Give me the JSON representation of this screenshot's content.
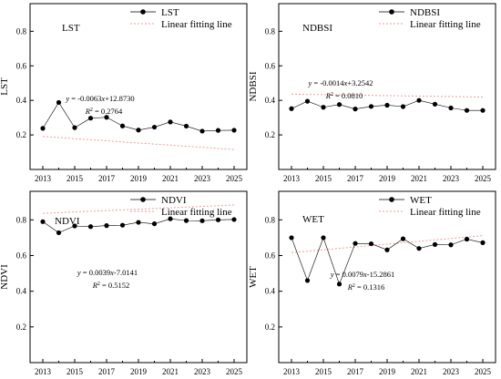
{
  "colors": {
    "series": "#000000",
    "fit": "#f29a9a",
    "axis": "#000000",
    "background": "#ffffff"
  },
  "chart_data": [
    {
      "type": "line",
      "panel": "top-left",
      "tag": "LST",
      "ylabel": "LST",
      "x": [
        2013,
        2014,
        2015,
        2016,
        2017,
        2018,
        2019,
        2020,
        2021,
        2022,
        2023,
        2024,
        2025
      ],
      "xticks": [
        "2013",
        "2015",
        "2017",
        "2019",
        "2021",
        "2023",
        "2025"
      ],
      "xlim": [
        2012.2,
        2025.8
      ],
      "ylim": [
        0,
        0.96
      ],
      "yticks": [
        "0.2",
        "0.4",
        "0.6",
        "0.8"
      ],
      "series": [
        {
          "name": "LST",
          "values": [
            0.238,
            0.388,
            0.242,
            0.297,
            0.302,
            0.252,
            0.228,
            0.245,
            0.275,
            0.251,
            0.222,
            0.226,
            0.227
          ]
        }
      ],
      "fit": {
        "name": "Linear fitting line",
        "slope": -0.0063,
        "intercept": 12.873,
        "equation": "-0.0063x+12.8730",
        "r2_value": "0.2764"
      },
      "legend_position": "top-right",
      "equation_position": "upper-middle"
    },
    {
      "type": "line",
      "panel": "top-right",
      "tag": "NDBSI",
      "ylabel": "NDBSI",
      "x": [
        2013,
        2014,
        2015,
        2016,
        2017,
        2018,
        2019,
        2020,
        2021,
        2022,
        2023,
        2024,
        2025
      ],
      "xticks": [
        "2013",
        "2015",
        "2017",
        "2019",
        "2021",
        "2023",
        "2025"
      ],
      "xlim": [
        2012.2,
        2025.8
      ],
      "ylim": [
        0,
        0.96
      ],
      "yticks": [
        "0.2",
        "0.4",
        "0.6",
        "0.8"
      ],
      "series": [
        {
          "name": "NDBSI",
          "values": [
            0.352,
            0.395,
            0.36,
            0.376,
            0.35,
            0.365,
            0.372,
            0.364,
            0.4,
            0.378,
            0.356,
            0.342,
            0.342
          ]
        }
      ],
      "fit": {
        "name": "Linear fitting line",
        "slope": -0.0014,
        "intercept": 3.2542,
        "equation": "-0.0014x+3.2542",
        "r2_value": "0.0810"
      },
      "legend_position": "top-right",
      "equation_position": "upper-middle"
    },
    {
      "type": "line",
      "panel": "bottom-left",
      "tag": "NDVI",
      "ylabel": "NDVI",
      "x": [
        2013,
        2014,
        2015,
        2016,
        2017,
        2018,
        2019,
        2020,
        2021,
        2022,
        2023,
        2024,
        2025
      ],
      "xticks": [
        "2013",
        "2015",
        "2017",
        "2019",
        "2021",
        "2023",
        "2025"
      ],
      "xlim": [
        2012.2,
        2025.8
      ],
      "ylim": [
        0,
        0.96
      ],
      "yticks": [
        "0.2",
        "0.4",
        "0.6",
        "0.8"
      ],
      "series": [
        {
          "name": "NDVI",
          "values": [
            0.79,
            0.728,
            0.766,
            0.762,
            0.768,
            0.77,
            0.786,
            0.778,
            0.806,
            0.796,
            0.795,
            0.8,
            0.802
          ]
        }
      ],
      "fit": {
        "name": "Linear fitting line",
        "slope": 0.0039,
        "intercept": -7.0141,
        "equation": "0.0039x-7.0141",
        "r2_value": "0.5152"
      },
      "legend_position": "top-right",
      "equation_position": "middle"
    },
    {
      "type": "line",
      "panel": "bottom-right",
      "tag": "WET",
      "ylabel": "WET",
      "x": [
        2013,
        2014,
        2015,
        2016,
        2017,
        2018,
        2019,
        2020,
        2021,
        2022,
        2023,
        2024,
        2025
      ],
      "xticks": [
        "2013",
        "2015",
        "2017",
        "2019",
        "2021",
        "2023",
        "2025"
      ],
      "xlim": [
        2012.2,
        2025.8
      ],
      "ylim": [
        0,
        0.96
      ],
      "yticks": [
        "0.2",
        "0.4",
        "0.6",
        "0.8"
      ],
      "series": [
        {
          "name": "WET",
          "values": [
            0.7,
            0.46,
            0.7,
            0.44,
            0.668,
            0.666,
            0.632,
            0.694,
            0.64,
            0.662,
            0.66,
            0.692,
            0.672
          ]
        }
      ],
      "fit": {
        "name": "Linear fitting line",
        "slope": 0.0079,
        "intercept": -15.2861,
        "equation": "0.0079x-15.2861",
        "r2_value": "0.1316"
      },
      "legend_position": "top-right",
      "equation_position": "middle-right"
    }
  ]
}
